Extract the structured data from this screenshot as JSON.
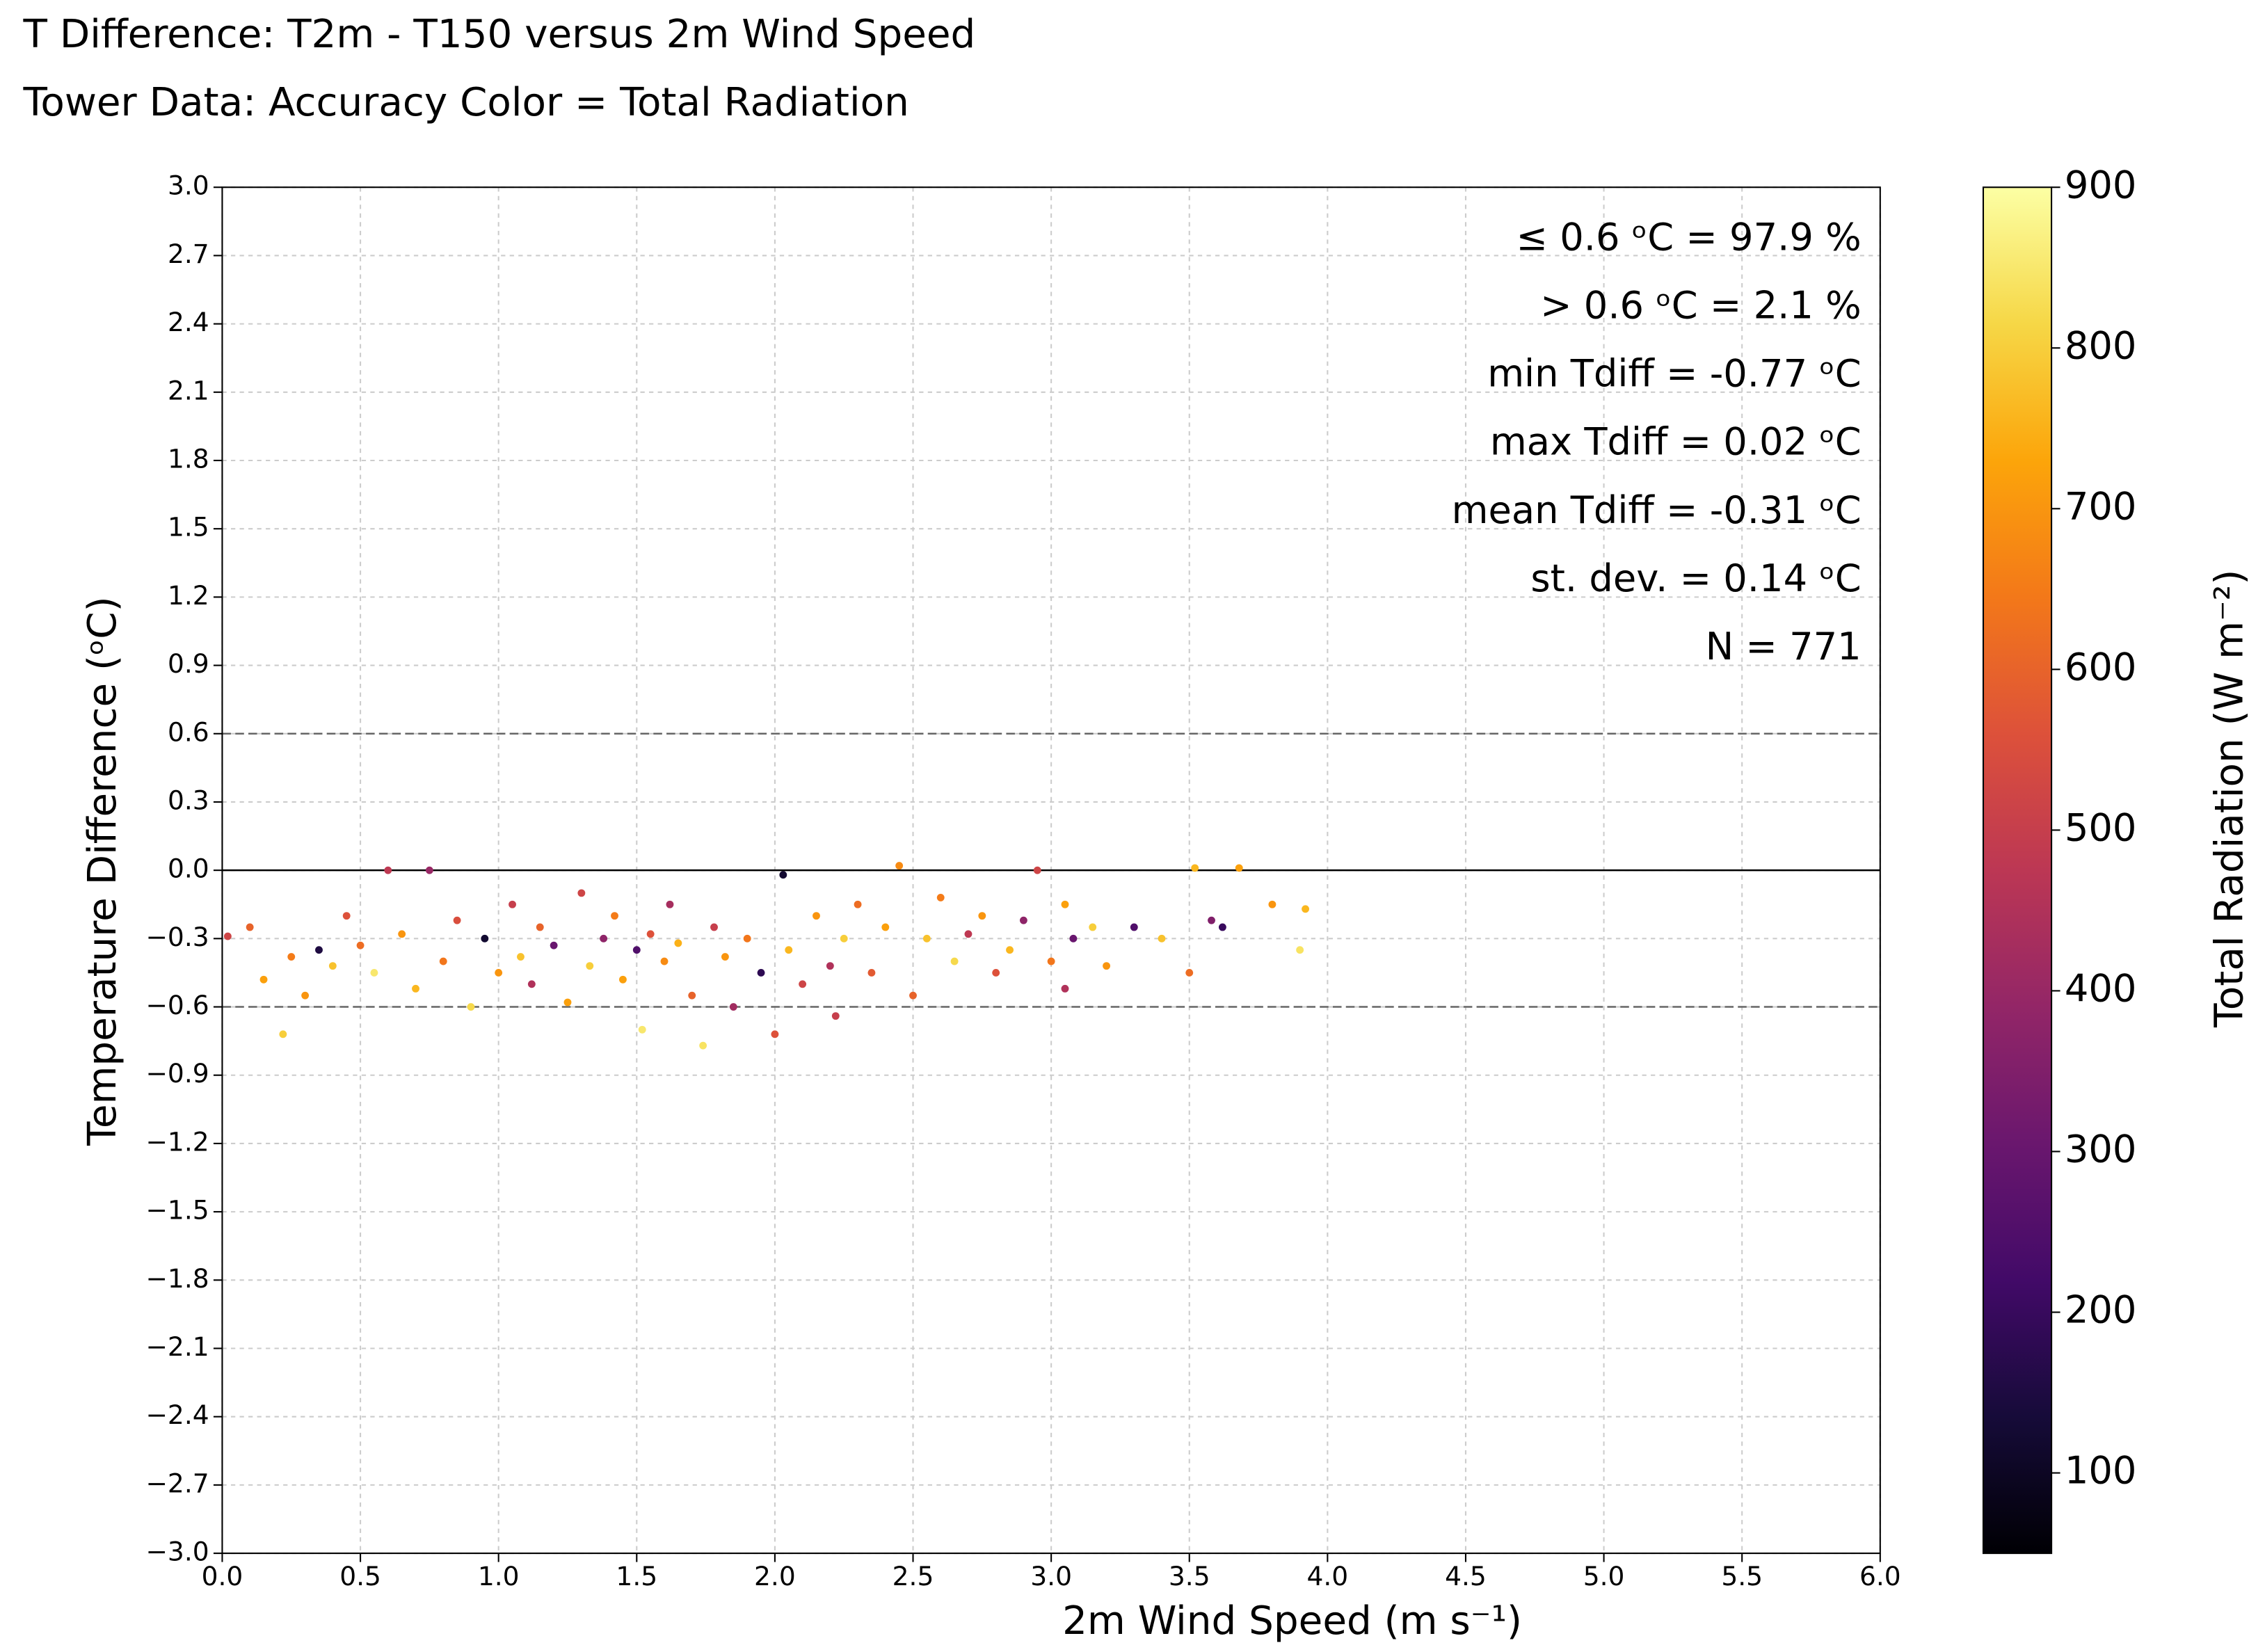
{
  "chart_data": {
    "type": "scatter",
    "title": "T Difference: T2m - T150 versus 2m Wind Speed",
    "subtitle": "Tower Data: Accuracy   Color = Total Radiation",
    "x_label": "2m Wind Speed (m s⁻¹)",
    "y_label": "Temperature Difference (ᵒC)",
    "colorbar_label": "Total Radiation (W m⁻²)",
    "cmap": "inferno",
    "grid": true,
    "xlim": [
      0,
      6
    ],
    "ylim": [
      -3,
      3
    ],
    "clim": [
      50,
      900
    ],
    "xticks": [
      {
        "value": 0,
        "label": "0.0"
      },
      {
        "value": 0.5,
        "label": "0.5"
      },
      {
        "value": 1,
        "label": "1.0"
      },
      {
        "value": 1.5,
        "label": "1.5"
      },
      {
        "value": 2,
        "label": "2.0"
      },
      {
        "value": 2.5,
        "label": "2.5"
      },
      {
        "value": 3,
        "label": "3.0"
      },
      {
        "value": 3.5,
        "label": "3.5"
      },
      {
        "value": 4,
        "label": "4.0"
      },
      {
        "value": 4.5,
        "label": "4.5"
      },
      {
        "value": 5,
        "label": "5.0"
      },
      {
        "value": 5.5,
        "label": "5.5"
      },
      {
        "value": 6,
        "label": "6.0"
      }
    ],
    "yticks": [
      {
        "value": -3,
        "label": "−3.0"
      },
      {
        "value": -2.7,
        "label": "−2.7"
      },
      {
        "value": -2.4,
        "label": "−2.4"
      },
      {
        "value": -2.1,
        "label": "−2.1"
      },
      {
        "value": -1.8,
        "label": "−1.8"
      },
      {
        "value": -1.5,
        "label": "−1.5"
      },
      {
        "value": -1.2,
        "label": "−1.2"
      },
      {
        "value": -0.9,
        "label": "−0.9"
      },
      {
        "value": -0.6,
        "label": "−0.6"
      },
      {
        "value": -0.3,
        "label": "−0.3"
      },
      {
        "value": 0,
        "label": "0.0"
      },
      {
        "value": 0.3,
        "label": "0.3"
      },
      {
        "value": 0.6,
        "label": "0.6"
      },
      {
        "value": 0.9,
        "label": "0.9"
      },
      {
        "value": 1.2,
        "label": "1.2"
      },
      {
        "value": 1.5,
        "label": "1.5"
      },
      {
        "value": 1.8,
        "label": "1.8"
      },
      {
        "value": 2.1,
        "label": "2.1"
      },
      {
        "value": 2.4,
        "label": "2.4"
      },
      {
        "value": 2.7,
        "label": "2.7"
      },
      {
        "value": 3,
        "label": "3.0"
      }
    ],
    "cticks": [
      100,
      200,
      300,
      400,
      500,
      600,
      700,
      800,
      900
    ],
    "hlines": [
      {
        "y": 0.6,
        "style": "dashed"
      },
      {
        "y": 0,
        "style": "solid"
      },
      {
        "y": -0.6,
        "style": "dashed"
      }
    ],
    "annotations": [
      "≤  0.6 ᵒC = 97.9 %",
      "> 0.6 ᵒC = 2.1 %",
      "min Tdiff = -0.77 ᵒC",
      "max Tdiff = 0.02 ᵒC",
      "mean Tdiff = -0.31 ᵒC",
      "st. dev. = 0.14 ᵒC",
      "N =  771"
    ],
    "x": [
      0.02,
      0.1,
      0.15,
      0.22,
      0.25,
      0.3,
      0.35,
      0.4,
      0.45,
      0.5,
      0.55,
      0.6,
      0.65,
      0.7,
      0.75,
      0.8,
      0.85,
      0.9,
      0.95,
      1.0,
      1.05,
      1.08,
      1.12,
      1.15,
      1.2,
      1.25,
      1.3,
      1.33,
      1.38,
      1.42,
      1.45,
      1.5,
      1.52,
      1.55,
      1.6,
      1.62,
      1.65,
      1.7,
      1.74,
      1.78,
      1.82,
      1.85,
      1.9,
      1.95,
      2.0,
      2.03,
      2.05,
      2.1,
      2.15,
      2.2,
      2.22,
      2.25,
      2.3,
      2.35,
      2.4,
      2.45,
      2.5,
      2.55,
      2.6,
      2.65,
      2.7,
      2.75,
      2.8,
      2.85,
      2.9,
      2.95,
      3.0,
      3.05,
      3.08,
      3.15,
      3.2,
      3.3,
      3.4,
      3.5,
      3.52,
      3.58,
      3.62,
      3.68,
      3.8,
      3.92,
      3.9,
      3.05
    ],
    "y": [
      -0.29,
      -0.25,
      -0.48,
      -0.72,
      -0.38,
      -0.55,
      -0.35,
      -0.42,
      -0.2,
      -0.33,
      -0.45,
      0.0,
      -0.28,
      -0.52,
      0.0,
      -0.4,
      -0.22,
      -0.6,
      -0.3,
      -0.45,
      -0.15,
      -0.38,
      -0.5,
      -0.25,
      -0.33,
      -0.58,
      -0.1,
      -0.42,
      -0.3,
      -0.2,
      -0.48,
      -0.35,
      -0.7,
      -0.28,
      -0.4,
      -0.15,
      -0.32,
      -0.55,
      -0.77,
      -0.25,
      -0.38,
      -0.6,
      -0.3,
      -0.45,
      -0.72,
      -0.02,
      -0.35,
      -0.5,
      -0.2,
      -0.42,
      -0.64,
      -0.3,
      -0.15,
      -0.45,
      -0.25,
      0.02,
      -0.55,
      -0.3,
      -0.12,
      -0.4,
      -0.28,
      -0.2,
      -0.45,
      -0.35,
      -0.22,
      0.0,
      -0.4,
      -0.15,
      -0.3,
      -0.25,
      -0.42,
      -0.25,
      -0.3,
      -0.45,
      0.01,
      -0.22,
      -0.25,
      0.01,
      -0.15,
      -0.17,
      -0.35,
      -0.52
    ],
    "c": [
      520,
      600,
      720,
      800,
      650,
      700,
      150,
      780,
      560,
      620,
      850,
      480,
      700,
      760,
      400,
      640,
      550,
      820,
      120,
      700,
      500,
      780,
      450,
      600,
      300,
      720,
      520,
      800,
      380,
      650,
      720,
      250,
      850,
      560,
      680,
      430,
      750,
      600,
      840,
      500,
      700,
      420,
      640,
      180,
      560,
      120,
      760,
      520,
      700,
      450,
      500,
      800,
      620,
      580,
      720,
      680,
      600,
      780,
      650,
      820,
      480,
      700,
      560,
      760,
      380,
      520,
      640,
      720,
      300,
      800,
      700,
      250,
      780,
      620,
      760,
      350,
      200,
      720,
      700,
      760,
      840,
      450
    ]
  }
}
